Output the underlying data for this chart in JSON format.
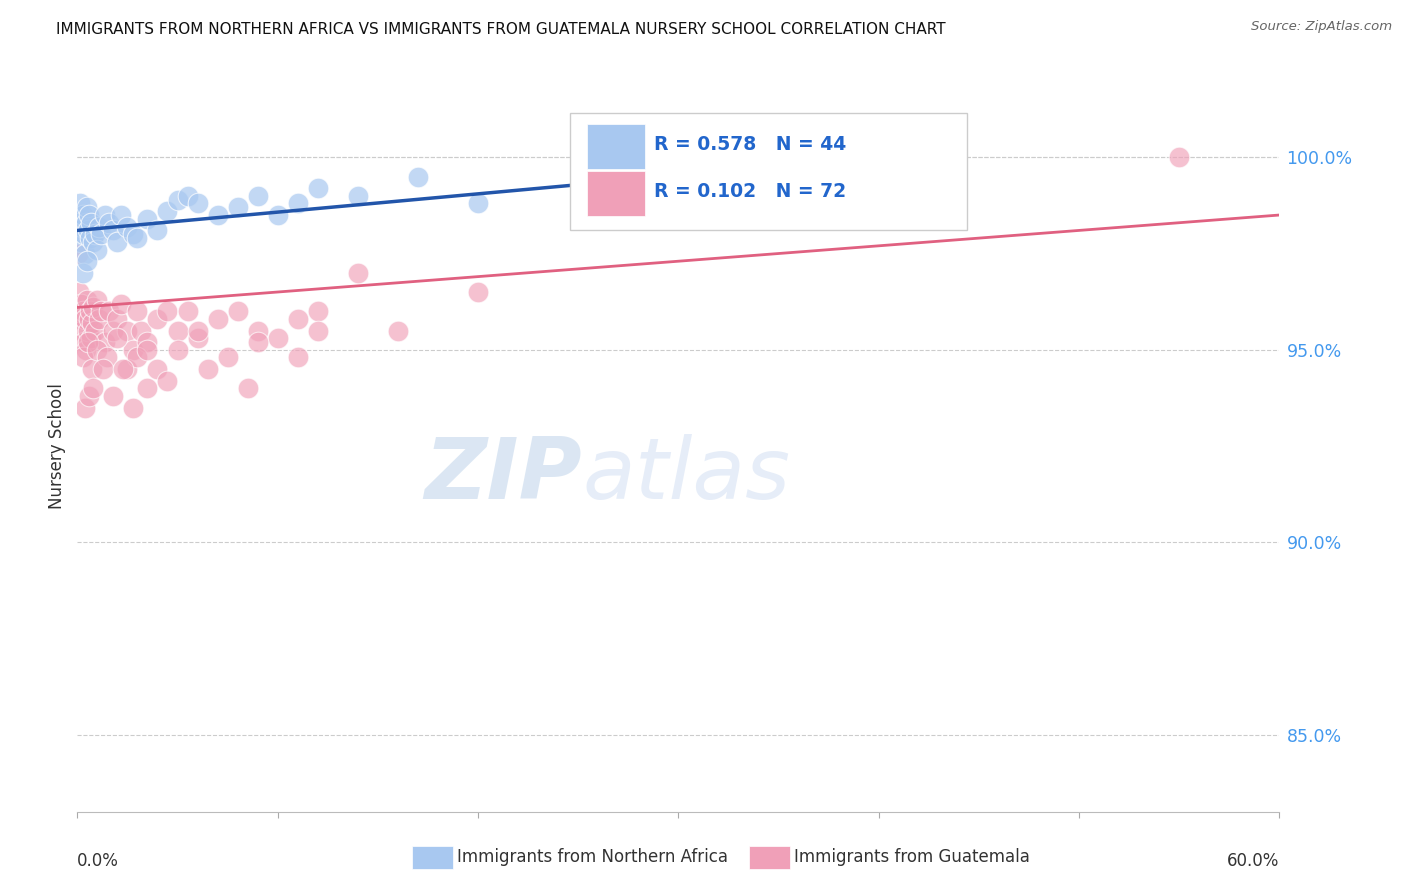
{
  "title": "IMMIGRANTS FROM NORTHERN AFRICA VS IMMIGRANTS FROM GUATEMALA NURSERY SCHOOL CORRELATION CHART",
  "source": "Source: ZipAtlas.com",
  "ylabel": "Nursery School",
  "x_label_bottom_left": "0.0%",
  "x_label_bottom_right": "60.0%",
  "y_ticks": [
    85.0,
    90.0,
    95.0,
    100.0
  ],
  "y_tick_labels": [
    "85.0%",
    "90.0%",
    "95.0%",
    "100.0%"
  ],
  "xlim": [
    0,
    60
  ],
  "ylim": [
    83.0,
    102.0
  ],
  "blue_R": 0.578,
  "blue_N": 44,
  "pink_R": 0.102,
  "pink_N": 72,
  "blue_color": "#a8c8f0",
  "pink_color": "#f0a0b8",
  "blue_line_color": "#2255aa",
  "pink_line_color": "#e06080",
  "legend_label_blue": "Immigrants from Northern Africa",
  "legend_label_pink": "Immigrants from Guatemala",
  "watermark_zip": "ZIP",
  "watermark_atlas": "atlas",
  "blue_scatter_x": [
    0.1,
    0.15,
    0.2,
    0.25,
    0.3,
    0.35,
    0.4,
    0.45,
    0.5,
    0.55,
    0.6,
    0.65,
    0.7,
    0.8,
    0.9,
    1.0,
    1.1,
    1.2,
    1.4,
    1.6,
    1.8,
    2.0,
    2.2,
    2.5,
    2.8,
    3.0,
    3.5,
    4.0,
    4.5,
    5.0,
    5.5,
    6.0,
    7.0,
    8.0,
    9.0,
    10.0,
    11.0,
    12.0,
    14.0,
    17.0,
    20.0,
    38.0,
    0.3,
    0.5
  ],
  "blue_scatter_y": [
    98.5,
    98.8,
    97.8,
    98.2,
    98.5,
    98.0,
    97.5,
    98.3,
    98.7,
    98.1,
    98.5,
    97.9,
    98.3,
    97.8,
    98.0,
    97.6,
    98.2,
    98.0,
    98.5,
    98.3,
    98.1,
    97.8,
    98.5,
    98.2,
    98.0,
    97.9,
    98.4,
    98.1,
    98.6,
    98.9,
    99.0,
    98.8,
    98.5,
    98.7,
    99.0,
    98.5,
    98.8,
    99.2,
    99.0,
    99.5,
    98.8,
    100.0,
    97.0,
    97.3
  ],
  "pink_scatter_x": [
    0.05,
    0.1,
    0.15,
    0.2,
    0.25,
    0.3,
    0.35,
    0.4,
    0.45,
    0.5,
    0.55,
    0.6,
    0.65,
    0.7,
    0.75,
    0.8,
    0.9,
    1.0,
    1.1,
    1.2,
    1.4,
    1.6,
    1.8,
    2.0,
    2.2,
    2.5,
    2.8,
    3.0,
    3.2,
    3.5,
    4.0,
    4.5,
    5.0,
    5.5,
    6.0,
    7.0,
    8.0,
    9.0,
    10.0,
    11.0,
    12.0,
    14.0,
    16.0,
    20.0,
    55.0,
    0.3,
    0.55,
    0.75,
    1.0,
    1.5,
    2.0,
    2.5,
    3.0,
    3.5,
    4.0,
    5.0,
    6.0,
    7.5,
    9.0,
    12.0,
    0.4,
    0.6,
    0.8,
    1.3,
    1.8,
    2.3,
    2.8,
    3.5,
    4.5,
    6.5,
    8.5,
    11.0
  ],
  "pink_scatter_y": [
    97.5,
    96.5,
    95.8,
    96.2,
    95.5,
    96.0,
    95.2,
    95.8,
    95.0,
    96.3,
    95.5,
    95.8,
    96.0,
    95.3,
    95.7,
    96.1,
    95.5,
    96.3,
    95.8,
    96.0,
    95.2,
    96.0,
    95.5,
    95.8,
    96.2,
    95.5,
    95.0,
    96.0,
    95.5,
    95.2,
    95.8,
    96.0,
    95.5,
    96.0,
    95.3,
    95.8,
    96.0,
    95.5,
    95.3,
    95.8,
    96.0,
    97.0,
    95.5,
    96.5,
    100.0,
    94.8,
    95.2,
    94.5,
    95.0,
    94.8,
    95.3,
    94.5,
    94.8,
    95.0,
    94.5,
    95.0,
    95.5,
    94.8,
    95.2,
    95.5,
    93.5,
    93.8,
    94.0,
    94.5,
    93.8,
    94.5,
    93.5,
    94.0,
    94.2,
    94.5,
    94.0,
    94.8
  ],
  "blue_line_x0": 0,
  "blue_line_y0": 98.1,
  "blue_line_x1": 40,
  "blue_line_y1": 100.0,
  "pink_line_x0": 0,
  "pink_line_y0": 96.1,
  "pink_line_x1": 60,
  "pink_line_y1": 98.5
}
